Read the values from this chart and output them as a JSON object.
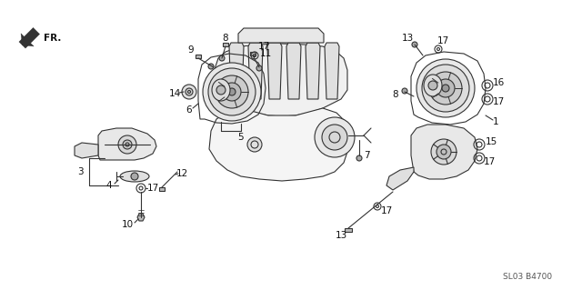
{
  "background_color": "#ffffff",
  "line_color": "#333333",
  "label_color": "#111111",
  "diagram_code": "SL03 B4700",
  "fr_label": "FR.",
  "label_fontsize": 7.5,
  "lw": 0.8
}
